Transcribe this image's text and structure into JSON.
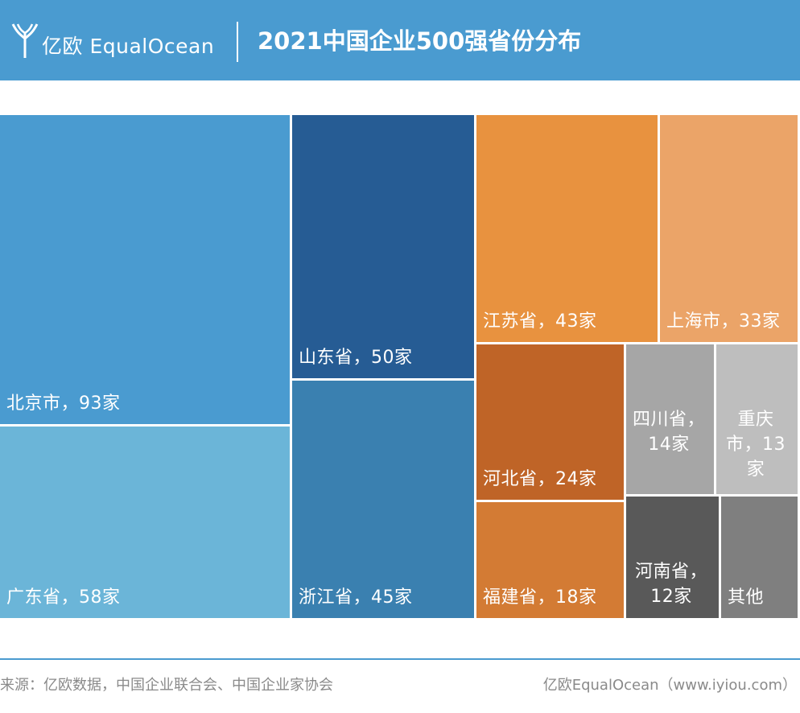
{
  "header": {
    "logo_text": "亿欧 EqualOcean",
    "title": "2021中国企业500强省份分布"
  },
  "chart_data": {
    "type": "treemap",
    "title": "2021中国企业500强省份分布",
    "unit": "家",
    "items": [
      {
        "name": "北京市",
        "value": 93,
        "label": "北京市，93家",
        "color": "#4a9bd0"
      },
      {
        "name": "广东省",
        "value": 58,
        "label": "广东省，58家",
        "color": "#6bb5d8"
      },
      {
        "name": "山东省",
        "value": 50,
        "label": "山东省，50家",
        "color": "#265c94"
      },
      {
        "name": "浙江省",
        "value": 45,
        "label": "浙江省，45家",
        "color": "#3a80b0"
      },
      {
        "name": "江苏省",
        "value": 43,
        "label": "江苏省，43家",
        "color": "#e8923f"
      },
      {
        "name": "上海市",
        "value": 33,
        "label": "上海市，33家",
        "color": "#eba468"
      },
      {
        "name": "河北省",
        "value": 24,
        "label": "河北省，24家",
        "color": "#bf6427"
      },
      {
        "name": "福建省",
        "value": 18,
        "label": "福建省，18家",
        "color": "#d37b34"
      },
      {
        "name": "四川省",
        "value": 14,
        "label": "四川省，14家",
        "color": "#a6a6a6"
      },
      {
        "name": "重庆市",
        "value": 13,
        "label": "重庆市，13家",
        "color": "#bebebe"
      },
      {
        "name": "河南省",
        "value": 12,
        "label": "河南省，12家",
        "color": "#595959"
      },
      {
        "name": "其他",
        "value": null,
        "label": "其他",
        "color": "#7f7f7f"
      }
    ]
  },
  "footer": {
    "source": "来源：亿欧数据，中国企业联合会、中国企业家协会",
    "brand": "亿欧EqualOcean（www.iyiou.com）"
  }
}
